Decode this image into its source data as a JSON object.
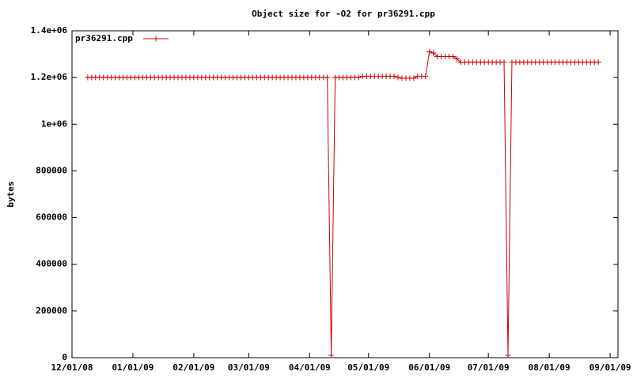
{
  "chart_data": {
    "type": "line",
    "title": "Object size for -O2 for pr36291.cpp",
    "y_label": "bytes",
    "x": [
      "2008-12-09",
      "2008-12-11",
      "2008-12-13",
      "2008-12-15",
      "2008-12-17",
      "2008-12-19",
      "2008-12-21",
      "2008-12-23",
      "2008-12-25",
      "2008-12-27",
      "2008-12-29",
      "2008-12-31",
      "2009-01-02",
      "2009-01-04",
      "2009-01-06",
      "2009-01-08",
      "2009-01-10",
      "2009-01-12",
      "2009-01-14",
      "2009-01-16",
      "2009-01-18",
      "2009-01-20",
      "2009-01-22",
      "2009-01-24",
      "2009-01-26",
      "2009-01-28",
      "2009-01-30",
      "2009-02-01",
      "2009-02-03",
      "2009-02-05",
      "2009-02-07",
      "2009-02-09",
      "2009-02-11",
      "2009-02-13",
      "2009-02-15",
      "2009-02-17",
      "2009-02-19",
      "2009-02-21",
      "2009-02-23",
      "2009-02-25",
      "2009-02-27",
      "2009-03-01",
      "2009-03-03",
      "2009-03-05",
      "2009-03-07",
      "2009-03-09",
      "2009-03-11",
      "2009-03-13",
      "2009-03-15",
      "2009-03-17",
      "2009-03-19",
      "2009-03-21",
      "2009-03-23",
      "2009-03-25",
      "2009-03-27",
      "2009-03-29",
      "2009-03-31",
      "2009-04-02",
      "2009-04-04",
      "2009-04-06",
      "2009-04-08",
      "2009-04-10",
      "2009-04-12",
      "2009-04-14",
      "2009-04-16",
      "2009-04-18",
      "2009-04-20",
      "2009-04-22",
      "2009-04-24",
      "2009-04-26",
      "2009-04-28",
      "2009-04-30",
      "2009-05-02",
      "2009-05-04",
      "2009-05-06",
      "2009-05-08",
      "2009-05-10",
      "2009-05-12",
      "2009-05-14",
      "2009-05-16",
      "2009-05-18",
      "2009-05-20",
      "2009-05-22",
      "2009-05-24",
      "2009-05-26",
      "2009-05-28",
      "2009-05-30",
      "2009-06-01",
      "2009-06-03",
      "2009-06-05",
      "2009-06-07",
      "2009-06-09",
      "2009-06-11",
      "2009-06-13",
      "2009-06-15",
      "2009-06-17",
      "2009-06-19",
      "2009-06-21",
      "2009-06-23",
      "2009-06-25",
      "2009-06-27",
      "2009-06-29",
      "2009-07-01",
      "2009-07-03",
      "2009-07-05",
      "2009-07-07",
      "2009-07-09",
      "2009-07-11",
      "2009-07-13",
      "2009-07-15",
      "2009-07-17",
      "2009-07-19",
      "2009-07-21",
      "2009-07-23",
      "2009-07-25",
      "2009-07-27",
      "2009-07-29",
      "2009-07-31",
      "2009-08-02",
      "2009-08-04",
      "2009-08-06",
      "2009-08-08",
      "2009-08-10",
      "2009-08-12",
      "2009-08-14",
      "2009-08-16",
      "2009-08-18",
      "2009-08-20",
      "2009-08-22",
      "2009-08-24",
      "2009-08-26"
    ],
    "series": [
      {
        "name": "pr36291.cpp",
        "color": "#cc0000",
        "values": [
          1200000,
          1200000,
          1200000,
          1200000,
          1200000,
          1200000,
          1200000,
          1200000,
          1200000,
          1200000,
          1200000,
          1200000,
          1200000,
          1200000,
          1200000,
          1200000,
          1200000,
          1200000,
          1200000,
          1200000,
          1200000,
          1200000,
          1200000,
          1200000,
          1200000,
          1200000,
          1200000,
          1200000,
          1200000,
          1200000,
          1200000,
          1200000,
          1200000,
          1200000,
          1200000,
          1200000,
          1200000,
          1200000,
          1200000,
          1200000,
          1200000,
          1200000,
          1200000,
          1200000,
          1200000,
          1200000,
          1200000,
          1200000,
          1200000,
          1200000,
          1200000,
          1200000,
          1200000,
          1200000,
          1200000,
          1200000,
          1200000,
          1200000,
          1200000,
          1200000,
          1200000,
          1200000,
          10000,
          1200000,
          1200000,
          1200000,
          1200000,
          1200000,
          1200000,
          1200000,
          1205000,
          1205000,
          1205000,
          1205000,
          1205000,
          1205000,
          1205000,
          1205000,
          1205000,
          1200000,
          1197000,
          1197000,
          1197000,
          1197000,
          1205000,
          1205000,
          1205000,
          1310000,
          1305000,
          1290000,
          1290000,
          1290000,
          1290000,
          1290000,
          1280000,
          1265000,
          1265000,
          1265000,
          1265000,
          1265000,
          1265000,
          1265000,
          1265000,
          1265000,
          1265000,
          1265000,
          1265000,
          10000,
          1265000,
          1265000,
          1265000,
          1265000,
          1265000,
          1265000,
          1265000,
          1265000,
          1265000,
          1265000,
          1265000,
          1265000,
          1265000,
          1265000,
          1265000,
          1265000,
          1265000,
          1265000,
          1265000,
          1265000,
          1265000,
          1265000,
          1265000
        ]
      }
    ],
    "xlim": [
      "2008-12-01",
      "2009-09-05"
    ],
    "xticks": [
      {
        "value": "2008-12-01",
        "label": "12/01/08"
      },
      {
        "value": "2009-01-01",
        "label": "01/01/09"
      },
      {
        "value": "2009-02-01",
        "label": "02/01/09"
      },
      {
        "value": "2009-03-01",
        "label": "03/01/09"
      },
      {
        "value": "2009-04-01",
        "label": "04/01/09"
      },
      {
        "value": "2009-05-01",
        "label": "05/01/09"
      },
      {
        "value": "2009-06-01",
        "label": "06/01/09"
      },
      {
        "value": "2009-07-01",
        "label": "07/01/09"
      },
      {
        "value": "2009-08-01",
        "label": "08/01/09"
      },
      {
        "value": "2009-09-01",
        "label": "09/01/09"
      }
    ],
    "ylim": [
      0,
      1400000
    ],
    "yticks": [
      0,
      200000,
      400000,
      600000,
      800000,
      {
        "value": 1000000,
        "label": "1e+06"
      },
      {
        "value": 1200000,
        "label": "1.2e+06"
      },
      {
        "value": 1400000,
        "label": "1.4e+06"
      }
    ],
    "legend": "top-left"
  }
}
